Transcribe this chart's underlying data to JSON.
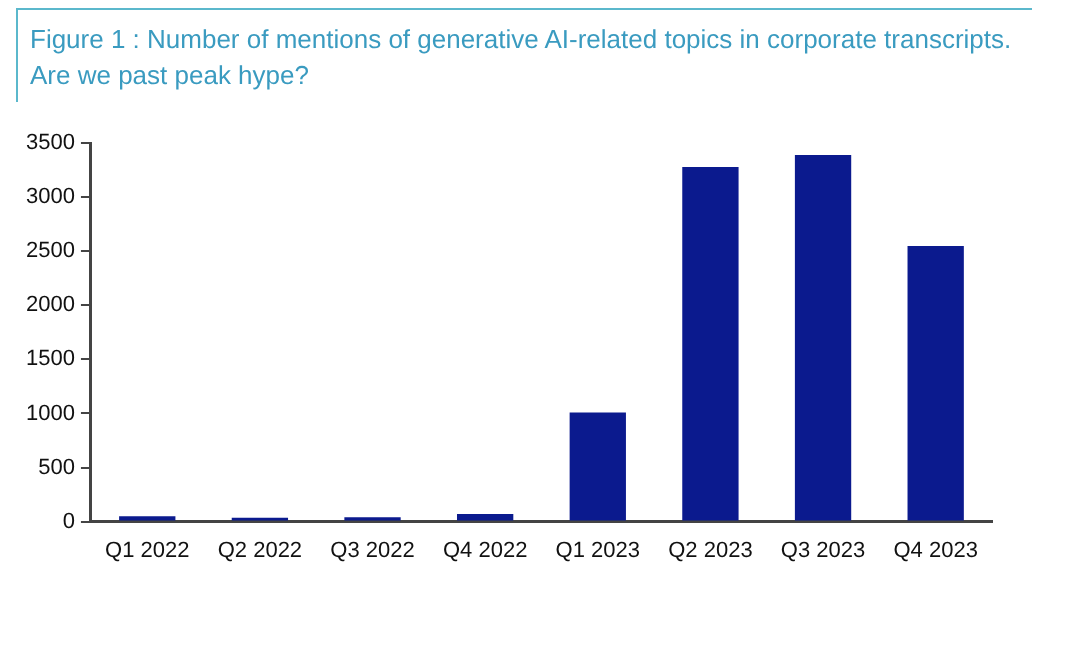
{
  "chart_data": {
    "type": "bar",
    "title": "Figure 1 : Number of mentions of generative AI-related topics in corporate transcripts. Are we past peak hype?",
    "categories": [
      "Q1 2022",
      "Q2 2022",
      "Q3 2022",
      "Q4 2022",
      "Q1 2023",
      "Q2 2023",
      "Q3 2023",
      "Q4 2023"
    ],
    "values": [
      50,
      35,
      40,
      70,
      1010,
      3280,
      3390,
      2550
    ],
    "color": "#0b1a8e",
    "ylim": [
      0,
      3500
    ],
    "yticks": [
      0,
      500,
      1000,
      1500,
      2000,
      2500,
      3000,
      3500
    ],
    "grid": false,
    "legend": false
  }
}
